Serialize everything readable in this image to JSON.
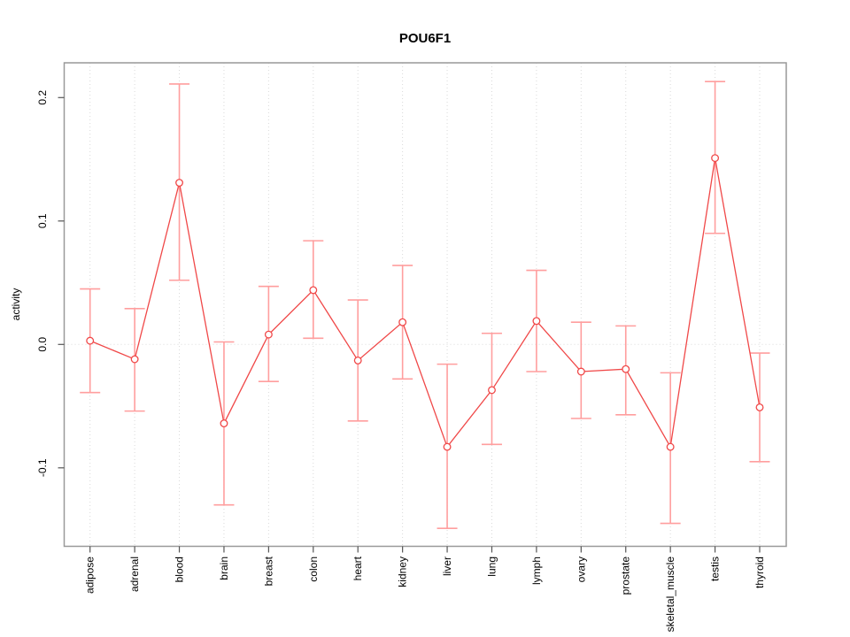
{
  "figure": {
    "title": "POU6F1"
  },
  "chart_data": {
    "type": "line",
    "subtype": "points-with-error-bars",
    "title": "POU6F1",
    "xlabel": "",
    "ylabel": "activity",
    "categories": [
      "adipose",
      "adrenal",
      "blood",
      "brain",
      "breast",
      "colon",
      "heart",
      "kidney",
      "liver",
      "lung",
      "lymph",
      "ovary",
      "prostate",
      "skeletal_muscle",
      "testis",
      "thyroid"
    ],
    "series": [
      {
        "name": "activity",
        "values": [
          0.003,
          -0.012,
          0.131,
          -0.064,
          0.008,
          0.044,
          -0.013,
          0.018,
          -0.083,
          -0.037,
          0.019,
          -0.022,
          -0.02,
          -0.083,
          0.151,
          -0.051
        ],
        "lower": [
          -0.039,
          -0.054,
          0.052,
          -0.13,
          -0.03,
          0.005,
          -0.062,
          -0.028,
          -0.149,
          -0.081,
          -0.022,
          -0.06,
          -0.057,
          -0.145,
          0.09,
          -0.095
        ],
        "upper": [
          0.045,
          0.029,
          0.211,
          0.002,
          0.047,
          0.084,
          0.036,
          0.064,
          -0.016,
          0.009,
          0.06,
          0.018,
          0.015,
          -0.023,
          0.213,
          -0.007
        ]
      }
    ],
    "ylim": [
      -0.164,
      0.228
    ],
    "yticks": [
      {
        "v": -0.1,
        "label": "-0.1"
      },
      {
        "v": 0.0,
        "label": "0.0"
      },
      {
        "v": 0.1,
        "label": "0.1"
      },
      {
        "v": 0.2,
        "label": "0.2"
      }
    ],
    "reference_line_y": 0,
    "grid": {
      "vertical": "dotted line at every category",
      "horizontal": "dotted line at y=0"
    },
    "legend": "none",
    "marker": "open-circle",
    "colors": {
      "line": "#f04848",
      "point": "#f04848",
      "error_bar": "#ff9e9e",
      "grid": "#d9d9d9",
      "zero_line": "#d9d9d9",
      "box": "#999999",
      "tick": "#555555",
      "text": "#000000"
    }
  }
}
